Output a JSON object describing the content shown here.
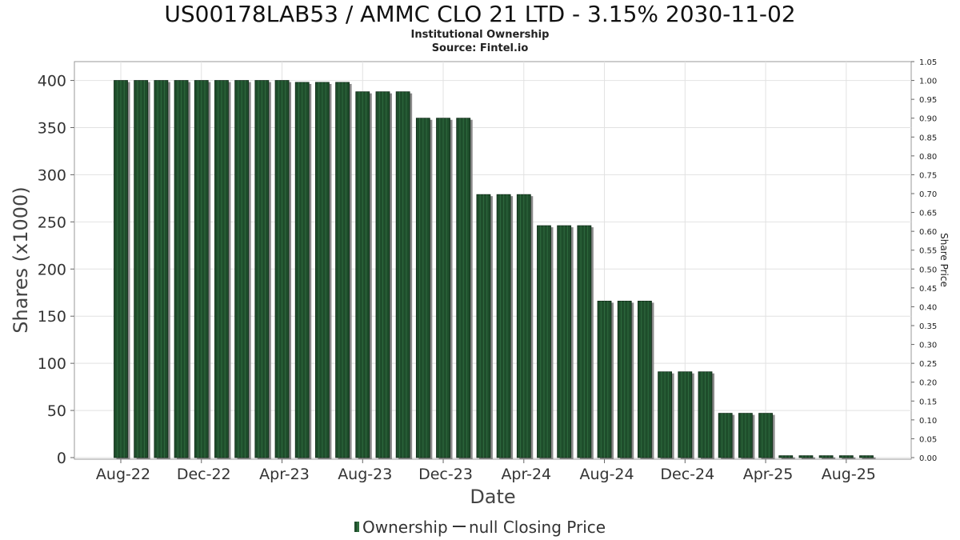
{
  "chart_data": {
    "type": "bar",
    "title": "US00178LAB53 / AMMC CLO 21 LTD - 3.15% 2030-11-02",
    "subtitle_lines": [
      "Institutional Ownership",
      "Source: Fintel.io"
    ],
    "xlabel": "Date",
    "ylabel": "Shares (x1000)",
    "y2label": "Share Price",
    "ylim": [
      0,
      420
    ],
    "y2lim": [
      0,
      1.05
    ],
    "yticks": [
      0,
      50,
      100,
      150,
      200,
      250,
      300,
      350,
      400
    ],
    "y2ticks": [
      "0.00",
      "0.05",
      "0.10",
      "0.15",
      "0.20",
      "0.25",
      "0.30",
      "0.35",
      "0.40",
      "0.45",
      "0.50",
      "0.55",
      "0.60",
      "0.65",
      "0.70",
      "0.75",
      "0.80",
      "0.85",
      "0.90",
      "0.95",
      "1.00",
      "1.05"
    ],
    "xtick_labels": [
      "Aug-22",
      "Dec-22",
      "Apr-23",
      "Aug-23",
      "Dec-23",
      "Apr-24",
      "Aug-24",
      "Dec-24",
      "Apr-25",
      "Aug-25"
    ],
    "grid": true,
    "legend_position": "bottom",
    "bar_color": "#1e4d2b",
    "series": [
      {
        "name": "Ownership",
        "values": [
          400,
          400,
          400,
          400,
          400,
          400,
          400,
          400,
          400,
          398,
          398,
          398,
          388,
          388,
          388,
          360,
          360,
          360,
          279,
          279,
          279,
          246,
          246,
          246,
          166,
          166,
          166,
          91,
          91,
          91,
          47,
          47,
          47,
          2,
          2,
          2,
          2,
          2
        ]
      }
    ],
    "legend": [
      {
        "label": "Ownership",
        "marker": "bar"
      },
      {
        "label": "null Closing Price",
        "marker": "line"
      }
    ]
  }
}
